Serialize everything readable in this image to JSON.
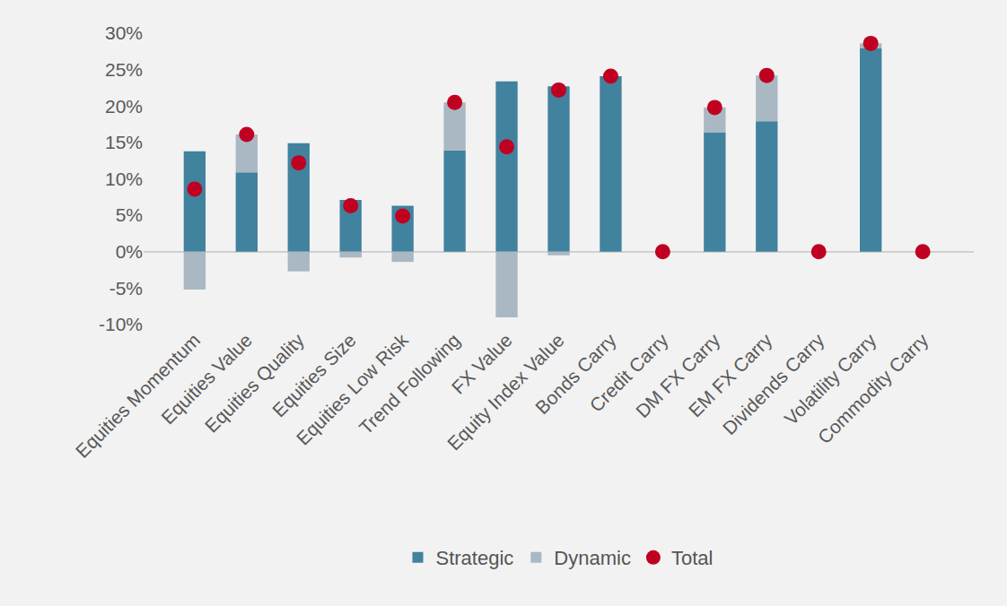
{
  "chart_data": {
    "type": "bar",
    "stacked": true,
    "grid": false,
    "legend": "bottom",
    "categories": [
      "Equities Momentum",
      "Equities Value",
      "Equities Quality",
      "Equities Size",
      "Equities Low Risk",
      "Trend Following",
      "FX Value",
      "Equity Index Value",
      "Bonds Carry",
      "Credit Carry",
      "DM FX Carry",
      "EM FX Carry",
      "Dividends Carry",
      "Volatility Carry",
      "Commodity Carry"
    ],
    "series": [
      {
        "name": "Strategic",
        "type": "bar",
        "color": "#41829f",
        "values": [
          13.8,
          10.9,
          14.9,
          7.1,
          6.3,
          13.9,
          23.4,
          22.7,
          24.1,
          0,
          16.4,
          17.9,
          0,
          27.9,
          0
        ]
      },
      {
        "name": "Dynamic",
        "type": "bar",
        "color": "#a9b8c3",
        "values": [
          -5.2,
          5.2,
          -2.7,
          -0.8,
          -1.4,
          6.6,
          -9.0,
          -0.5,
          0,
          0,
          3.4,
          6.3,
          0,
          0.7,
          0
        ]
      },
      {
        "name": "Total",
        "type": "scatter",
        "marker": "circle",
        "color": "#c00020",
        "values": [
          8.6,
          16.1,
          12.2,
          6.3,
          4.9,
          20.5,
          14.4,
          22.2,
          24.1,
          0,
          19.8,
          24.2,
          0,
          28.6,
          0
        ]
      }
    ],
    "ylim": [
      -10,
      30
    ],
    "yticks": [
      {
        "value": -10,
        "label": "-10%"
      },
      {
        "value": -5,
        "label": "-5%"
      },
      {
        "value": 0,
        "label": "0%"
      },
      {
        "value": 5,
        "label": "5%"
      },
      {
        "value": 10,
        "label": "10%"
      },
      {
        "value": 15,
        "label": "15%"
      },
      {
        "value": 20,
        "label": "20%"
      },
      {
        "value": 25,
        "label": "25%"
      },
      {
        "value": 30,
        "label": "30%"
      }
    ]
  }
}
